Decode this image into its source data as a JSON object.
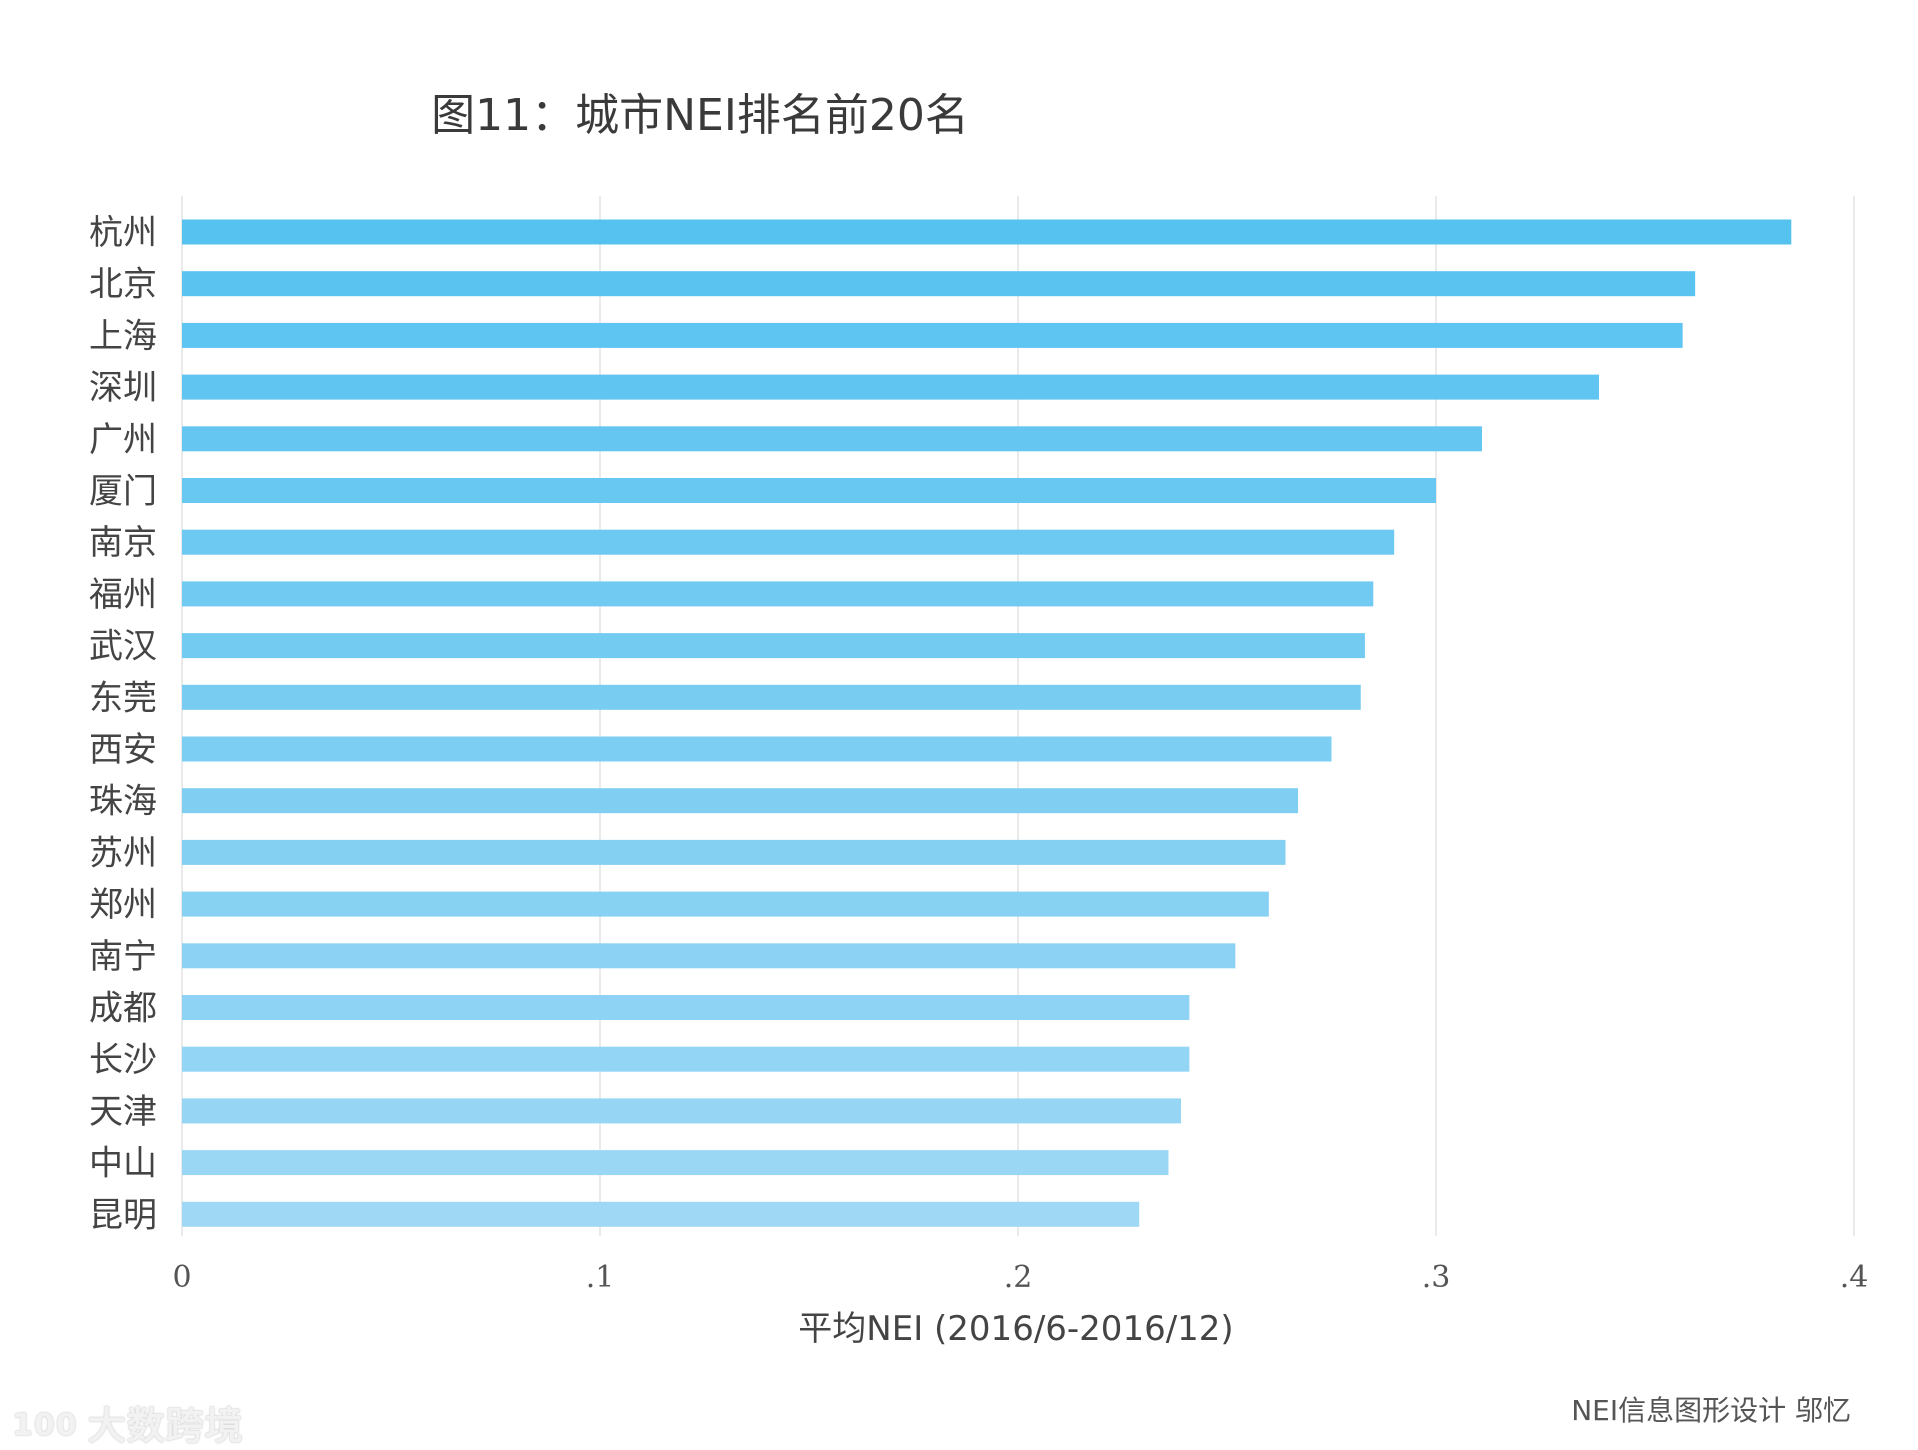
{
  "chart_data": {
    "type": "bar",
    "orientation": "horizontal",
    "title": "图11：城市NEI排名前20名",
    "xlabel": "平均NEI (2016/6-2016/12)",
    "ylabel": "",
    "xlim": [
      0,
      0.4
    ],
    "x_ticks": [
      0,
      0.1,
      0.2,
      0.3,
      0.4
    ],
    "x_tick_labels": [
      "0",
      ".1",
      ".2",
      ".3",
      ".4"
    ],
    "grid": true,
    "categories": [
      "杭州",
      "北京",
      "上海",
      "深圳",
      "广州",
      "厦门",
      "南京",
      "福州",
      "武汉",
      "东莞",
      "西安",
      "珠海",
      "苏州",
      "郑州",
      "南宁",
      "成都",
      "长沙",
      "天津",
      "中山",
      "昆明"
    ],
    "values": [
      0.385,
      0.362,
      0.359,
      0.339,
      0.311,
      0.3,
      0.29,
      0.285,
      0.283,
      0.282,
      0.275,
      0.267,
      0.264,
      0.26,
      0.252,
      0.241,
      0.241,
      0.239,
      0.236,
      0.229
    ],
    "colors": {
      "start": "#56c2f0",
      "end": "#9ed8f5"
    }
  },
  "credit": "NEI信息图形设计 邬忆",
  "watermark": {
    "logo_text": "100",
    "text": "大数跨境"
  }
}
